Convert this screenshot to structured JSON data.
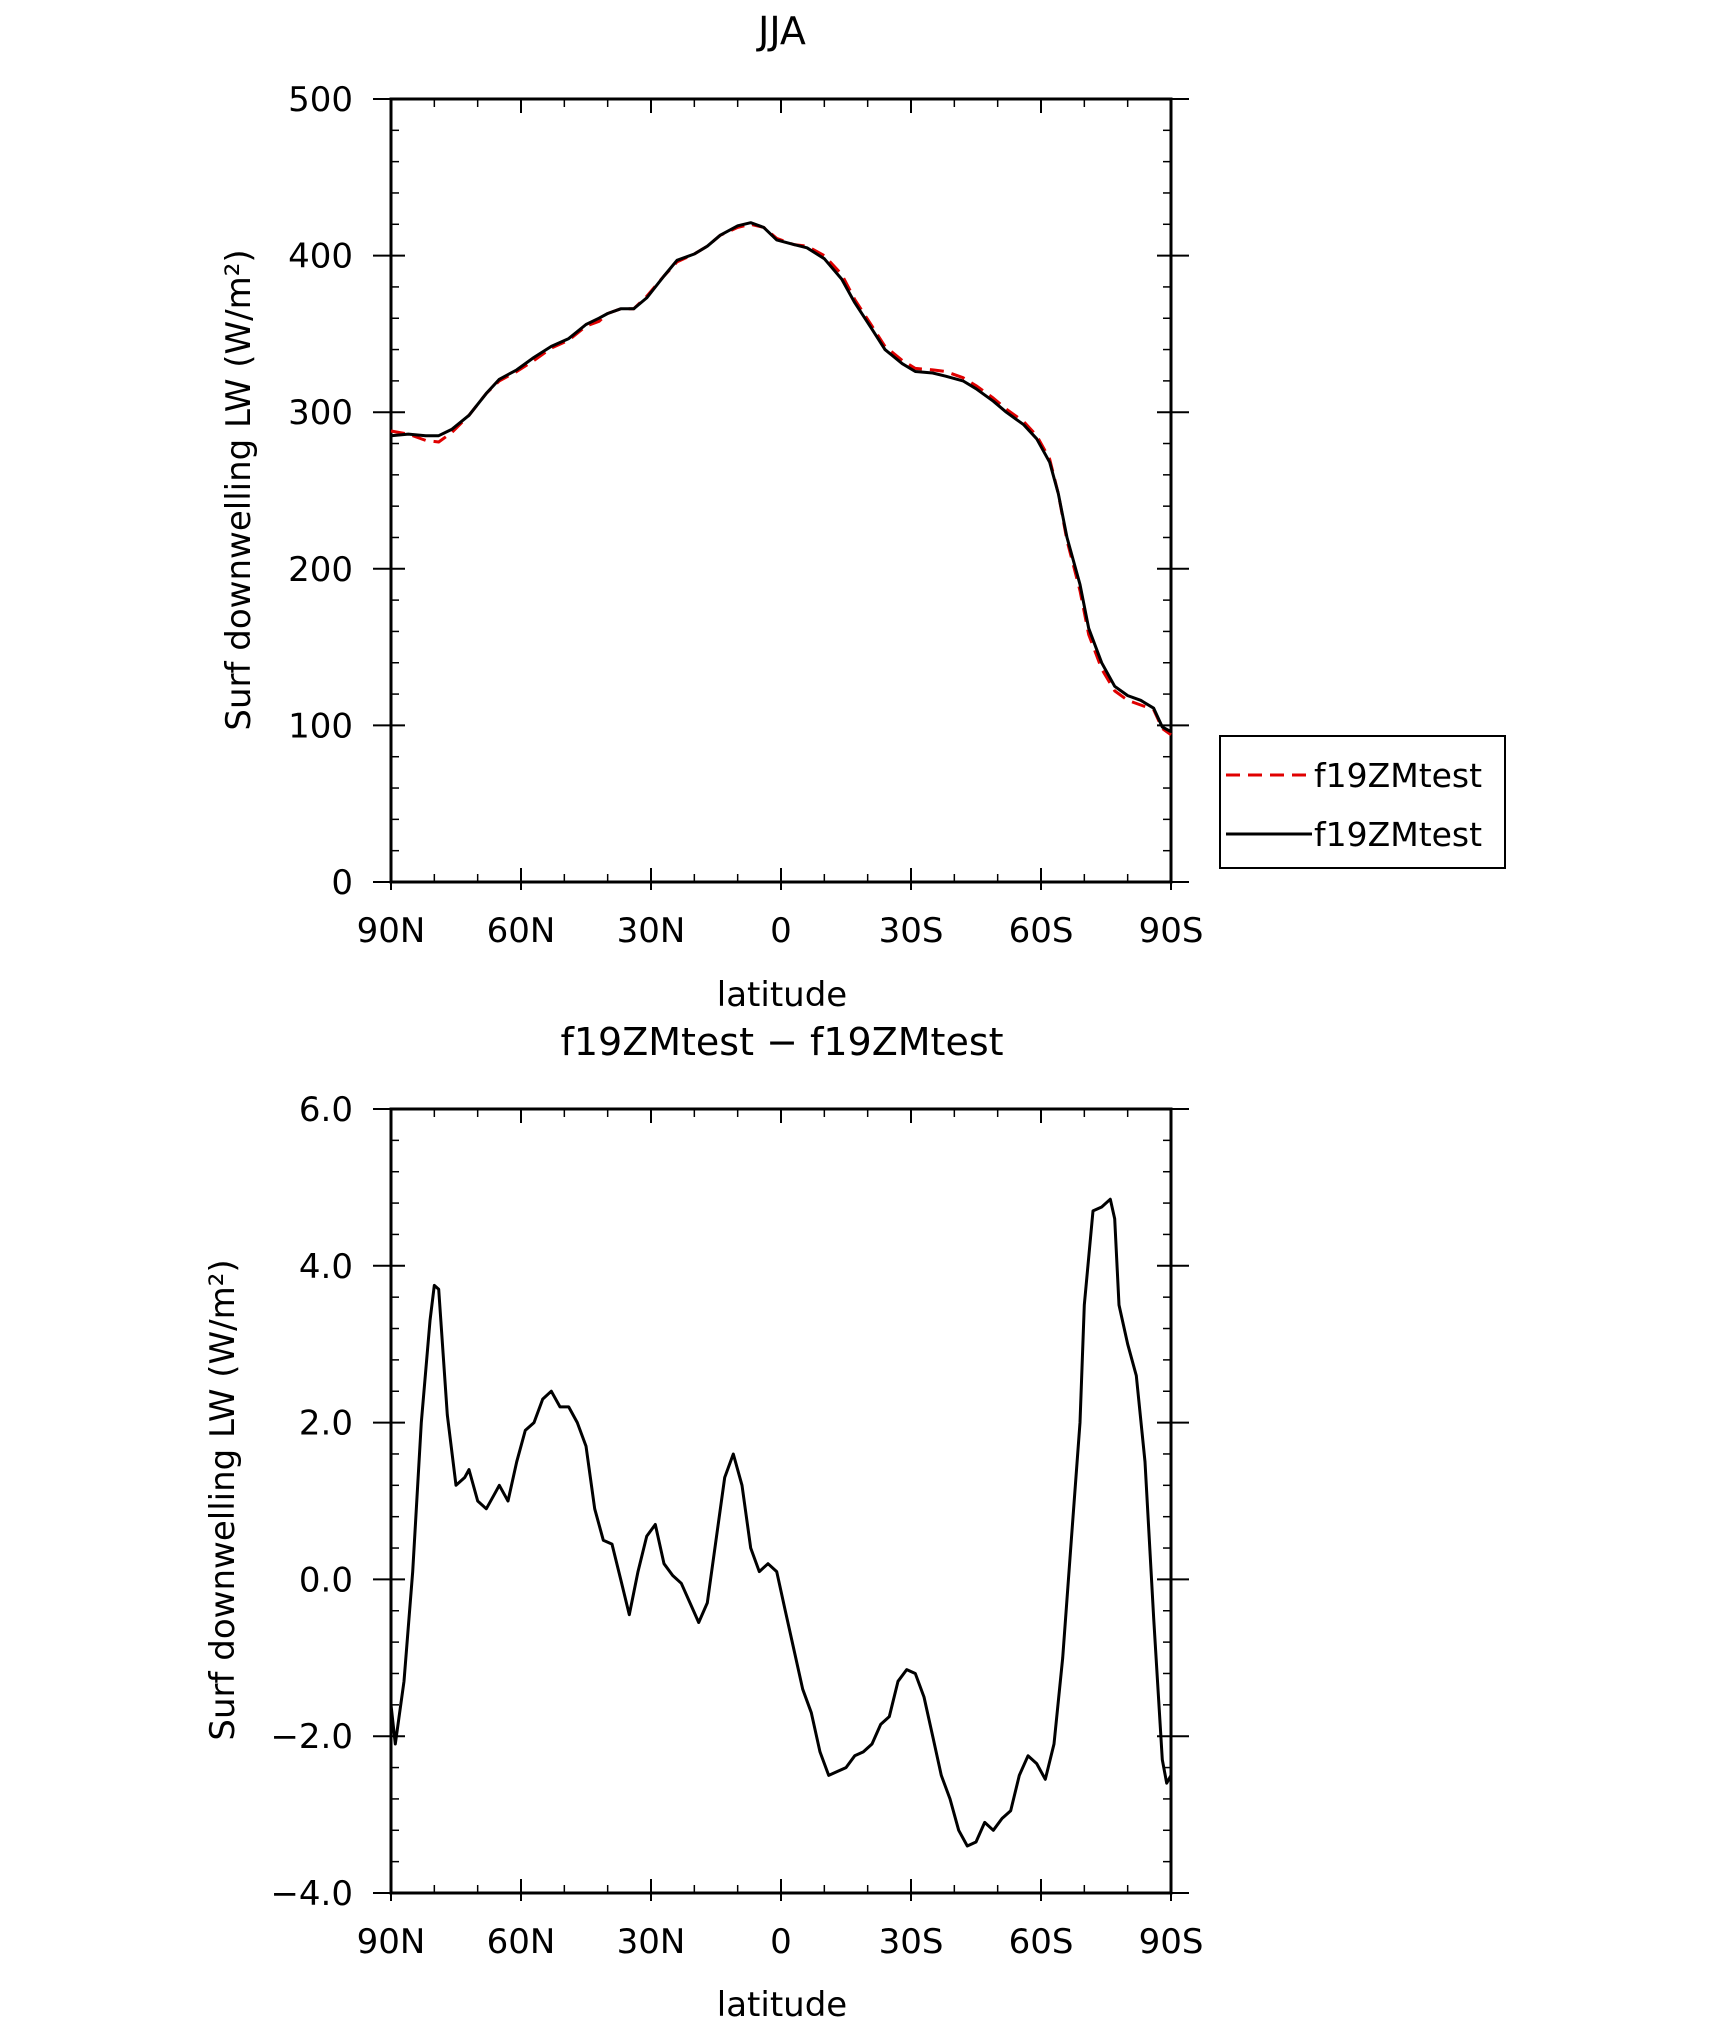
{
  "chart_data": [
    {
      "type": "line",
      "title": "JJA",
      "xlabel": "latitude",
      "ylabel": "Surf downwelling LW (W/m²)",
      "ylim": [
        0,
        500
      ],
      "yticks": [
        "0",
        "100",
        "200",
        "300",
        "400",
        "500"
      ],
      "xlim": [
        90,
        -90
      ],
      "xticks": [
        {
          "value": 90,
          "label": "90N"
        },
        {
          "value": 60,
          "label": "60N"
        },
        {
          "value": 30,
          "label": "30N"
        },
        {
          "value": 0,
          "label": "0"
        },
        {
          "value": -30,
          "label": "30S"
        },
        {
          "value": -60,
          "label": "60S"
        },
        {
          "value": -90,
          "label": "90S"
        }
      ],
      "legend_placement": "right",
      "grid": false,
      "series": [
        {
          "name": "f19ZMtest",
          "color": "#e00000",
          "dash": "dashed",
          "points": [
            [
              90,
              288
            ],
            [
              86,
              286
            ],
            [
              82,
              282
            ],
            [
              79,
              281
            ],
            [
              76,
              287
            ],
            [
              72,
              298
            ],
            [
              68,
              312
            ],
            [
              65,
              320
            ],
            [
              61,
              326
            ],
            [
              57,
              333
            ],
            [
              53,
              341
            ],
            [
              49,
              346
            ],
            [
              45,
              355
            ],
            [
              42,
              358
            ],
            [
              40,
              363
            ],
            [
              37,
              366
            ],
            [
              34,
              366
            ],
            [
              31,
              374
            ],
            [
              27,
              387
            ],
            [
              24,
              396
            ],
            [
              20,
              401
            ],
            [
              17,
              406
            ],
            [
              14,
              413
            ],
            [
              10,
              418
            ],
            [
              7,
              420
            ],
            [
              4,
              418
            ],
            [
              1,
              411
            ],
            [
              -3,
              407
            ],
            [
              -6,
              406
            ],
            [
              -10,
              400
            ],
            [
              -14,
              388
            ],
            [
              -17,
              372
            ],
            [
              -21,
              355
            ],
            [
              -24,
              342
            ],
            [
              -28,
              333
            ],
            [
              -31,
              328
            ],
            [
              -35,
              327
            ],
            [
              -38,
              326
            ],
            [
              -42,
              322
            ],
            [
              -45,
              317
            ],
            [
              -49,
              309
            ],
            [
              -52,
              302
            ],
            [
              -56,
              294
            ],
            [
              -59,
              285
            ],
            [
              -62,
              270
            ],
            [
              -64,
              248
            ],
            [
              -66,
              218
            ],
            [
              -69,
              186
            ],
            [
              -71,
              158
            ],
            [
              -74,
              136
            ],
            [
              -77,
              122
            ],
            [
              -80,
              116
            ],
            [
              -83,
              113
            ],
            [
              -86,
              110
            ],
            [
              -88,
              98
            ],
            [
              -90,
              94
            ]
          ]
        },
        {
          "name": "f19ZMtest",
          "color": "#000000",
          "dash": "solid",
          "points": [
            [
              90,
              285
            ],
            [
              86,
              286
            ],
            [
              82,
              285
            ],
            [
              79,
              285
            ],
            [
              76,
              289
            ],
            [
              72,
              298
            ],
            [
              68,
              312
            ],
            [
              65,
              321
            ],
            [
              61,
              327
            ],
            [
              57,
              335
            ],
            [
              53,
              342
            ],
            [
              49,
              347
            ],
            [
              45,
              356
            ],
            [
              42,
              360
            ],
            [
              40,
              363
            ],
            [
              37,
              366
            ],
            [
              34,
              366
            ],
            [
              31,
              373
            ],
            [
              27,
              387
            ],
            [
              24,
              397
            ],
            [
              20,
              401
            ],
            [
              17,
              406
            ],
            [
              14,
              413
            ],
            [
              10,
              419
            ],
            [
              7,
              421
            ],
            [
              4,
              418
            ],
            [
              1,
              410
            ],
            [
              -3,
              407
            ],
            [
              -6,
              405
            ],
            [
              -10,
              398
            ],
            [
              -14,
              385
            ],
            [
              -17,
              370
            ],
            [
              -21,
              353
            ],
            [
              -24,
              340
            ],
            [
              -28,
              331
            ],
            [
              -31,
              326
            ],
            [
              -35,
              325
            ],
            [
              -38,
              323
            ],
            [
              -42,
              320
            ],
            [
              -45,
              315
            ],
            [
              -49,
              307
            ],
            [
              -52,
              300
            ],
            [
              -56,
              292
            ],
            [
              -59,
              283
            ],
            [
              -62,
              268
            ],
            [
              -64,
              248
            ],
            [
              -66,
              220
            ],
            [
              -69,
              190
            ],
            [
              -71,
              162
            ],
            [
              -74,
              140
            ],
            [
              -77,
              125
            ],
            [
              -80,
              119
            ],
            [
              -83,
              116
            ],
            [
              -86,
              111
            ],
            [
              -88,
              99
            ],
            [
              -90,
              96
            ]
          ]
        }
      ]
    },
    {
      "type": "line",
      "title": "f19ZMtest − f19ZMtest",
      "xlabel": "latitude",
      "ylabel": "Surf downwelling LW (W/m²)",
      "ylim": [
        -4,
        6
      ],
      "yticks": [
        "−4.0",
        "−2.0",
        "0.0",
        "2.0",
        "4.0",
        "6.0"
      ],
      "ytick_values": [
        -4,
        -2,
        0,
        2,
        4,
        6
      ],
      "xlim": [
        90,
        -90
      ],
      "xticks": [
        {
          "value": 90,
          "label": "90N"
        },
        {
          "value": 60,
          "label": "60N"
        },
        {
          "value": 30,
          "label": "30N"
        },
        {
          "value": 0,
          "label": "0"
        },
        {
          "value": -30,
          "label": "30S"
        },
        {
          "value": -60,
          "label": "60S"
        },
        {
          "value": -90,
          "label": "90S"
        }
      ],
      "grid": false,
      "series": [
        {
          "color": "#000000",
          "dash": "solid",
          "points": [
            [
              90,
              -1.6
            ],
            [
              89,
              -2.1
            ],
            [
              87,
              -1.3
            ],
            [
              85,
              0.1
            ],
            [
              83,
              2.0
            ],
            [
              81,
              3.3
            ],
            [
              80,
              3.75
            ],
            [
              79,
              3.7
            ],
            [
              77,
              2.1
            ],
            [
              75,
              1.2
            ],
            [
              73,
              1.3
            ],
            [
              72,
              1.4
            ],
            [
              70,
              1.0
            ],
            [
              68,
              0.9
            ],
            [
              66,
              1.1
            ],
            [
              65,
              1.2
            ],
            [
              63,
              1.0
            ],
            [
              61,
              1.5
            ],
            [
              59,
              1.9
            ],
            [
              57,
              2.0
            ],
            [
              55,
              2.3
            ],
            [
              53,
              2.4
            ],
            [
              51,
              2.2
            ],
            [
              49,
              2.2
            ],
            [
              47,
              2.0
            ],
            [
              45,
              1.7
            ],
            [
              43,
              0.9
            ],
            [
              41,
              0.5
            ],
            [
              39,
              0.45
            ],
            [
              37,
              0.0
            ],
            [
              35,
              -0.45
            ],
            [
              33,
              0.1
            ],
            [
              31,
              0.55
            ],
            [
              29,
              0.7
            ],
            [
              27,
              0.2
            ],
            [
              25,
              0.05
            ],
            [
              23,
              -0.05
            ],
            [
              21,
              -0.3
            ],
            [
              19,
              -0.55
            ],
            [
              17,
              -0.3
            ],
            [
              15,
              0.5
            ],
            [
              13,
              1.3
            ],
            [
              11,
              1.6
            ],
            [
              9,
              1.2
            ],
            [
              7,
              0.4
            ],
            [
              5,
              0.1
            ],
            [
              3,
              0.2
            ],
            [
              1,
              0.1
            ],
            [
              -1,
              -0.4
            ],
            [
              -3,
              -0.9
            ],
            [
              -5,
              -1.4
            ],
            [
              -7,
              -1.7
            ],
            [
              -9,
              -2.2
            ],
            [
              -11,
              -2.5
            ],
            [
              -13,
              -2.45
            ],
            [
              -15,
              -2.4
            ],
            [
              -17,
              -2.25
            ],
            [
              -19,
              -2.2
            ],
            [
              -21,
              -2.1
            ],
            [
              -23,
              -1.85
            ],
            [
              -25,
              -1.75
            ],
            [
              -27,
              -1.3
            ],
            [
              -29,
              -1.15
            ],
            [
              -31,
              -1.2
            ],
            [
              -33,
              -1.5
            ],
            [
              -35,
              -2.0
            ],
            [
              -37,
              -2.5
            ],
            [
              -39,
              -2.8
            ],
            [
              -41,
              -3.2
            ],
            [
              -43,
              -3.4
            ],
            [
              -45,
              -3.35
            ],
            [
              -47,
              -3.1
            ],
            [
              -49,
              -3.2
            ],
            [
              -51,
              -3.05
            ],
            [
              -53,
              -2.95
            ],
            [
              -55,
              -2.5
            ],
            [
              -57,
              -2.25
            ],
            [
              -59,
              -2.35
            ],
            [
              -61,
              -2.55
            ],
            [
              -63,
              -2.1
            ],
            [
              -65,
              -1.0
            ],
            [
              -67,
              0.5
            ],
            [
              -69,
              2.0
            ],
            [
              -70,
              3.5
            ],
            [
              -72,
              4.7
            ],
            [
              -74,
              4.75
            ],
            [
              -76,
              4.85
            ],
            [
              -77,
              4.6
            ],
            [
              -78,
              3.5
            ],
            [
              -80,
              3.0
            ],
            [
              -82,
              2.6
            ],
            [
              -84,
              1.5
            ],
            [
              -86,
              -0.5
            ],
            [
              -88,
              -2.3
            ],
            [
              -89,
              -2.6
            ],
            [
              -90,
              -2.5
            ]
          ]
        }
      ]
    }
  ]
}
